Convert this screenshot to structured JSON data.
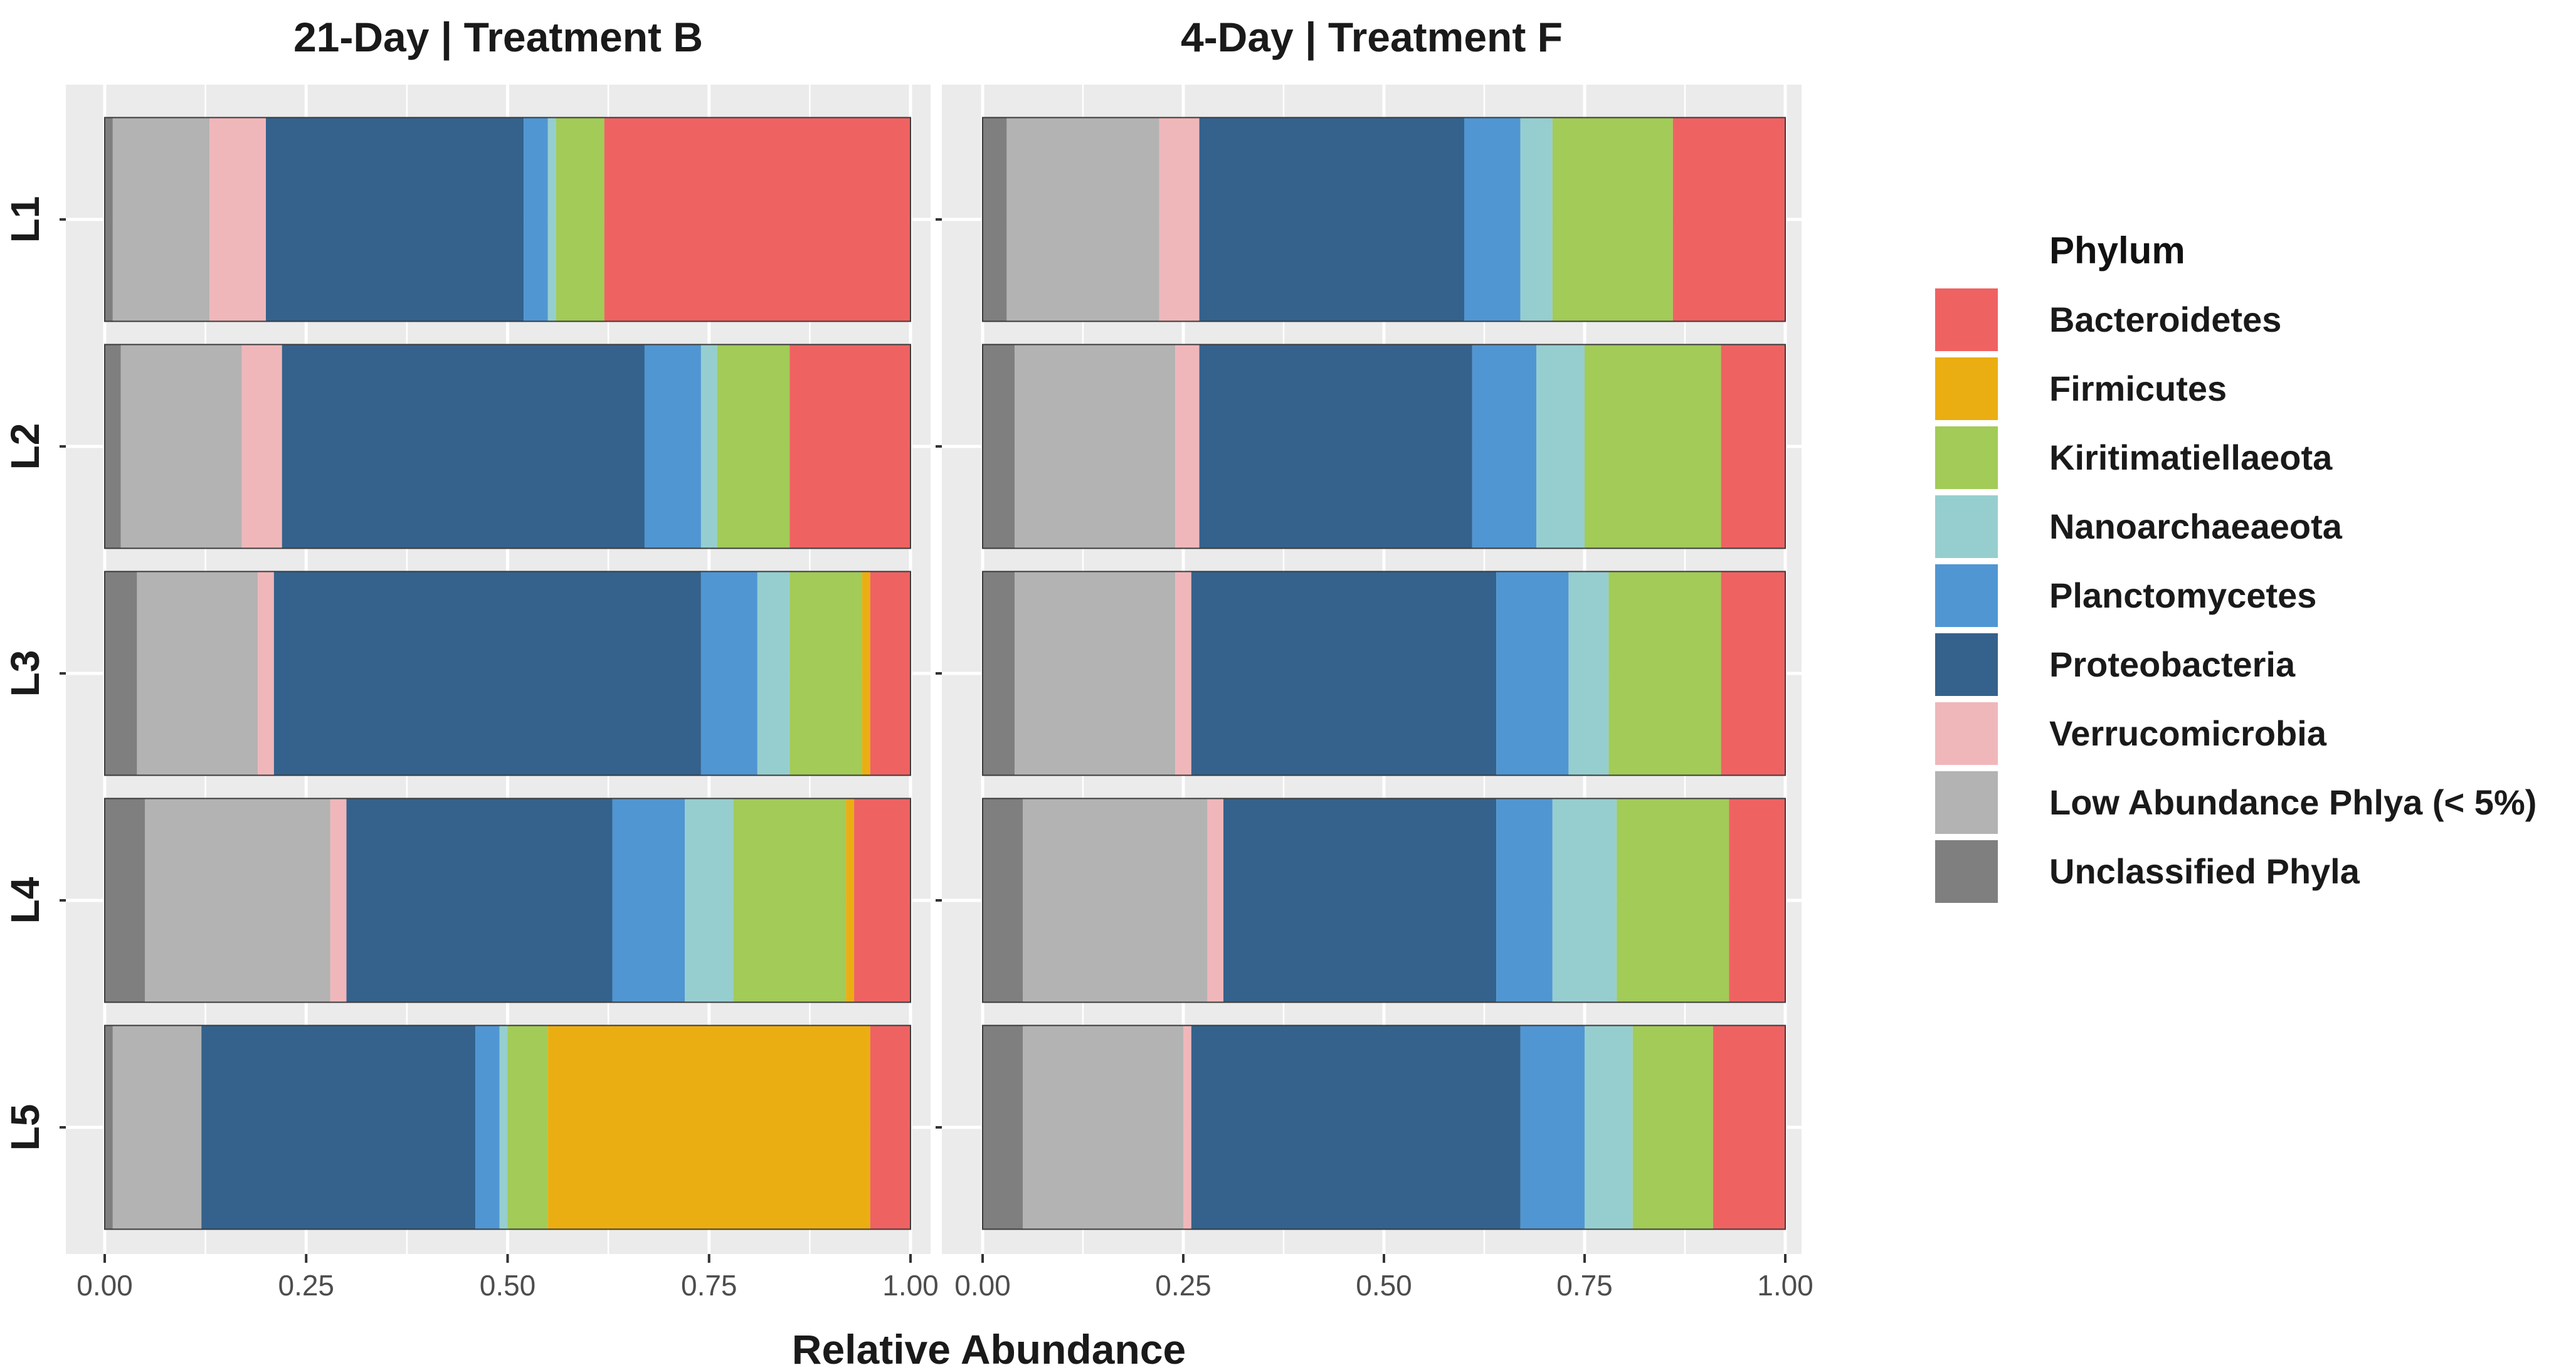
{
  "chart_data": {
    "type": "bar",
    "orientation": "horizontal",
    "stacked": true,
    "xlabel": "Relative Abundance",
    "xlim": [
      0,
      1
    ],
    "x_ticks": [
      "0.00",
      "0.25",
      "0.50",
      "0.75",
      "1.00"
    ],
    "categories": [
      "L1",
      "L2",
      "L3",
      "L4",
      "L5"
    ],
    "grid": true,
    "legend": {
      "title": "Phylum",
      "position": "right",
      "entries": [
        {
          "name": "Bacteroidetes",
          "color": "#EF6262"
        },
        {
          "name": "Firmicutes",
          "color": "#EBAE12"
        },
        {
          "name": "Kiritimatiellaeota",
          "color": "#A2CB58"
        },
        {
          "name": "Nanoarchaeaeota",
          "color": "#96CED0"
        },
        {
          "name": "Planctomycetes",
          "color": "#5096D2"
        },
        {
          "name": "Proteobacteria",
          "color": "#34628C"
        },
        {
          "name": "Verrucomicrobia",
          "color": "#F0B7BA"
        },
        {
          "name": "Low Abundance Phlya (< 5%)",
          "color": "#B3B3B3"
        },
        {
          "name": "Unclassified Phyla",
          "color": "#7F7F7F"
        }
      ]
    },
    "stack_order": [
      "Unclassified Phyla",
      "Low Abundance Phlya (< 5%)",
      "Verrucomicrobia",
      "Proteobacteria",
      "Planctomycetes",
      "Nanoarchaeaeota",
      "Kiritimatiellaeota",
      "Firmicutes",
      "Bacteroidetes"
    ],
    "panels": [
      {
        "title": "21-Day | Treatment B",
        "series": [
          {
            "name": "Unclassified Phyla",
            "values": [
              0.01,
              0.02,
              0.04,
              0.05,
              0.01
            ]
          },
          {
            "name": "Low Abundance Phlya (< 5%)",
            "values": [
              0.12,
              0.15,
              0.15,
              0.23,
              0.11
            ]
          },
          {
            "name": "Verrucomicrobia",
            "values": [
              0.07,
              0.05,
              0.02,
              0.02,
              0.0
            ]
          },
          {
            "name": "Proteobacteria",
            "values": [
              0.32,
              0.45,
              0.53,
              0.33,
              0.34
            ]
          },
          {
            "name": "Planctomycetes",
            "values": [
              0.03,
              0.07,
              0.07,
              0.09,
              0.03
            ]
          },
          {
            "name": "Nanoarchaeaeota",
            "values": [
              0.01,
              0.02,
              0.04,
              0.06,
              0.01
            ]
          },
          {
            "name": "Kiritimatiellaeota",
            "values": [
              0.06,
              0.09,
              0.09,
              0.14,
              0.05
            ]
          },
          {
            "name": "Firmicutes",
            "values": [
              0.0,
              0.0,
              0.01,
              0.01,
              0.4
            ]
          },
          {
            "name": "Bacteroidetes",
            "values": [
              0.38,
              0.15,
              0.05,
              0.07,
              0.05
            ]
          }
        ]
      },
      {
        "title": "4-Day | Treatment F",
        "series": [
          {
            "name": "Unclassified Phyla",
            "values": [
              0.03,
              0.04,
              0.04,
              0.05,
              0.05
            ]
          },
          {
            "name": "Low Abundance Phlya (< 5%)",
            "values": [
              0.19,
              0.2,
              0.2,
              0.23,
              0.2
            ]
          },
          {
            "name": "Verrucomicrobia",
            "values": [
              0.05,
              0.03,
              0.02,
              0.02,
              0.01
            ]
          },
          {
            "name": "Proteobacteria",
            "values": [
              0.33,
              0.34,
              0.38,
              0.34,
              0.41
            ]
          },
          {
            "name": "Planctomycetes",
            "values": [
              0.07,
              0.08,
              0.09,
              0.07,
              0.08
            ]
          },
          {
            "name": "Nanoarchaeaeota",
            "values": [
              0.04,
              0.06,
              0.05,
              0.08,
              0.06
            ]
          },
          {
            "name": "Kiritimatiellaeota",
            "values": [
              0.15,
              0.17,
              0.14,
              0.14,
              0.1
            ]
          },
          {
            "name": "Firmicutes",
            "values": [
              0.0,
              0.0,
              0.0,
              0.0,
              0.0
            ]
          },
          {
            "name": "Bacteroidetes",
            "values": [
              0.14,
              0.08,
              0.08,
              0.07,
              0.09
            ]
          }
        ]
      }
    ]
  }
}
